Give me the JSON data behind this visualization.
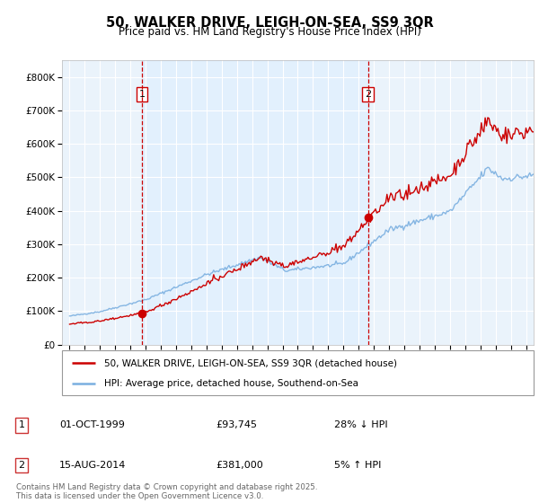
{
  "title_line1": "50, WALKER DRIVE, LEIGH-ON-SEA, SS9 3QR",
  "title_line2": "Price paid vs. HM Land Registry's House Price Index (HPI)",
  "legend_line1": "50, WALKER DRIVE, LEIGH-ON-SEA, SS9 3QR (detached house)",
  "legend_line2": "HPI: Average price, detached house, Southend-on-Sea",
  "annotation1_label": "1",
  "annotation1_date": "01-OCT-1999",
  "annotation1_price": "£93,745",
  "annotation1_hpi": "28% ↓ HPI",
  "annotation2_label": "2",
  "annotation2_date": "15-AUG-2014",
  "annotation2_price": "£381,000",
  "annotation2_hpi": "5% ↑ HPI",
  "footer": "Contains HM Land Registry data © Crown copyright and database right 2025.\nThis data is licensed under the Open Government Licence v3.0.",
  "sale1_x": 1999.75,
  "sale1_y": 93745,
  "sale2_x": 2014.62,
  "sale2_y": 381000,
  "vline1_x": 1999.75,
  "vline2_x": 2014.62,
  "red_color": "#cc0000",
  "blue_color": "#7aafe0",
  "vline_color": "#cc0000",
  "fill_color": "#ddeeff",
  "background_color": "#eaf3fb",
  "grid_color": "#ffffff",
  "ylim": [
    0,
    850000
  ],
  "xlim": [
    1994.5,
    2025.5
  ],
  "yticks": [
    0,
    100000,
    200000,
    300000,
    400000,
    500000,
    600000,
    700000,
    800000
  ]
}
